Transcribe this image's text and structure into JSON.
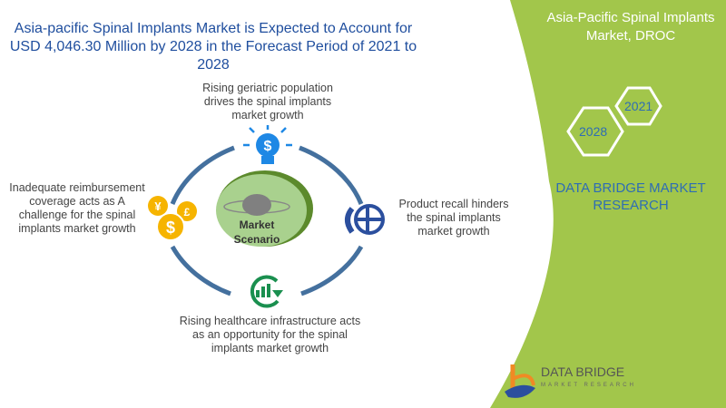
{
  "title": "Asia-pacific Spinal Implants Market is Expected to Account for USD 4,046.30 Million by 2028 in the Forecast Period of 2021 to 2028",
  "panel": {
    "title": "Asia-Pacific Spinal Implants Market, DROC",
    "year_start": "2021",
    "year_end": "2028",
    "company": "DATA BRIDGE MARKET RESEARCH",
    "logo_text": "DATA BRIDGE",
    "logo_subtext": "MARKET RESEARCH"
  },
  "center": {
    "line1": "Market",
    "line2": "Scenario"
  },
  "items": {
    "driver": "Rising geriatric population drives the spinal implants market growth",
    "restraint": "Product recall hinders the spinal implants market growth",
    "opportunity": "Rising healthcare infrastructure acts as an opportunity for the spinal implants market growth",
    "challenge": "Inadequate reimbursement coverage acts as A challenge for the spinal implants market growth"
  },
  "colors": {
    "green": "#a2c64b",
    "blue": "#1f4e9e",
    "ring": "#44709e",
    "yellow": "#f6b400",
    "icon_blue": "#1e88e5",
    "icon_green": "#1a8f4f"
  }
}
